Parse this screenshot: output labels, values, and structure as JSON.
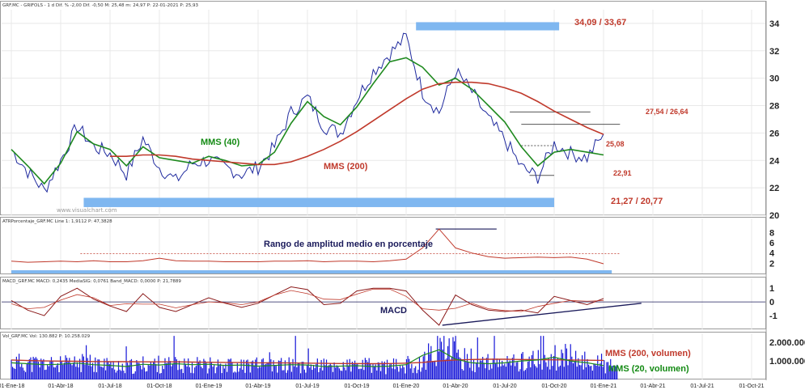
{
  "colors": {
    "price": "#1f2a9e",
    "sma40": "#1f8a1f",
    "sma200": "#c0392b",
    "band": "#7fb7f0",
    "atr": "#c0392b",
    "macd": "#8b1a1a",
    "signal": "#c0392b",
    "volume": "#1515d8",
    "grid": "#e8e8e8",
    "dotted": "#c0392b",
    "trendline": "#1a1a5a"
  },
  "panels": {
    "price": {
      "header": "GRF.MC - GRIFOLS - 1 d Dif. % -2,00 Dif. -0,50 M: 25,48 m: 24,97 P: 22-01-2021 P: 25,93",
      "watermark": "www.visualchart.com",
      "y_ticks": [
        "34",
        "32",
        "30",
        "28",
        "26",
        "24",
        "22",
        "20"
      ]
    },
    "atr": {
      "header": "ATRPorcentaje_GRF.MC Line 1: 1,9112 P: 47,3828",
      "y_ticks": [
        "8",
        "6",
        "4",
        "2"
      ]
    },
    "macd": {
      "header": "MACD_GRF.MC MACD: 0,2435 MediaSIG: 0,0761 Band_MACD: 0,0000 P: 21,7889",
      "y_ticks": [
        "1",
        "0",
        "-1"
      ]
    },
    "volume": {
      "header": "Vol_GRF.MC Vol: 130.882 P: 10.258.029",
      "y_ticks": [
        "2.000.000",
        "1.000.000"
      ]
    }
  },
  "annotations": {
    "resistance_band": "34,09 / 33,67",
    "support_band": "21,27 / 20,77",
    "level_2754": "27,54 / 26,64",
    "level_2508": "25,08",
    "level_2291": "22,91",
    "sma40_label": "MMS (40)",
    "sma200_label": "MMS (200)",
    "atr_label": "Rango de amplitud medio en porcentaje",
    "macd_label": "MACD",
    "vol_sma200_label": "MMS (200, volumen)",
    "vol_sma20_label": "MMS (20, volumen)"
  },
  "chart_data": {
    "type": "line",
    "x_ticks": [
      "01-Ene-18",
      "01-Abr-18",
      "01-Jul-18",
      "01-Oct-18",
      "01-Ene-19",
      "01-Abr-19",
      "01-Jul-19",
      "01-Oct-19",
      "01-Ene-20",
      "01-Abr-20",
      "01-Jul-20",
      "01-Oct-20",
      "01-Ene-21",
      "01-Abr-21",
      "01-Jul-21",
      "01-Oct-21"
    ],
    "x": [
      "2018-01",
      "2018-02",
      "2018-03",
      "2018-04",
      "2018-05",
      "2018-06",
      "2018-07",
      "2018-08",
      "2018-09",
      "2018-10",
      "2018-11",
      "2018-12",
      "2019-01",
      "2019-02",
      "2019-03",
      "2019-04",
      "2019-05",
      "2019-06",
      "2019-07",
      "2019-08",
      "2019-09",
      "2019-10",
      "2019-11",
      "2019-12",
      "2020-01",
      "2020-02",
      "2020-03",
      "2020-04",
      "2020-05",
      "2020-06",
      "2020-07",
      "2020-08",
      "2020-09",
      "2020-10",
      "2020-11",
      "2020-12",
      "2021-01"
    ],
    "price_ylim": [
      20,
      35
    ],
    "series": [
      {
        "name": "MMS (40)",
        "values": [
          24.8,
          23.6,
          22.3,
          23.8,
          26.1,
          25.2,
          24.8,
          23.6,
          25.0,
          24.2,
          24.0,
          23.8,
          24.3,
          24.0,
          23.6,
          23.7,
          24.6,
          26.7,
          28.3,
          27.2,
          26.6,
          27.9,
          29.6,
          31.2,
          31.5,
          30.8,
          29.5,
          30.0,
          29.2,
          28.0,
          26.8,
          25.0,
          23.6,
          24.6,
          24.8,
          24.6,
          24.4
        ]
      },
      {
        "name": "MMS (200)",
        "values": [
          null,
          null,
          null,
          null,
          null,
          null,
          24.3,
          24.3,
          24.4,
          24.4,
          24.3,
          24.1,
          24.0,
          23.9,
          23.8,
          23.7,
          23.7,
          23.9,
          24.3,
          24.8,
          25.4,
          26.1,
          26.9,
          27.7,
          28.5,
          29.2,
          29.6,
          29.7,
          29.7,
          29.6,
          29.3,
          28.9,
          28.3,
          27.6,
          27.0,
          26.4,
          25.9
        ]
      }
    ],
    "price_close": [
      24.8,
      23.2,
      21.8,
      24.0,
      26.5,
      25.0,
      24.5,
      23.0,
      25.6,
      23.5,
      22.5,
      23.8,
      24.0,
      23.5,
      23.0,
      23.5,
      25.0,
      27.5,
      28.6,
      26.5,
      26.0,
      28.5,
      30.5,
      31.8,
      33.0,
      29.0,
      27.5,
      30.5,
      29.0,
      27.0,
      25.5,
      23.5,
      22.8,
      25.2,
      24.5,
      24.2,
      25.93
    ],
    "atr_values": [
      2.4,
      2.2,
      2.3,
      2.4,
      2.3,
      2.5,
      2.3,
      2.3,
      2.5,
      3.0,
      2.5,
      2.4,
      2.4,
      2.3,
      2.3,
      2.3,
      2.4,
      2.4,
      2.5,
      2.3,
      2.4,
      2.4,
      2.3,
      2.5,
      2.8,
      5.0,
      8.7,
      5.0,
      4.0,
      3.3,
      3.0,
      3.1,
      3.2,
      3.1,
      3.2,
      2.8,
      1.9
    ],
    "atr_ylim": [
      0,
      9.5
    ],
    "macd_values": [
      0.1,
      -0.6,
      -1.0,
      0.4,
      1.0,
      0.2,
      -0.3,
      -0.7,
      0.6,
      -0.4,
      -0.7,
      -0.2,
      0.3,
      -0.1,
      -0.4,
      -0.1,
      0.5,
      1.1,
      0.9,
      -0.2,
      -0.1,
      0.8,
      1.0,
      1.0,
      0.8,
      -0.6,
      -1.7,
      0.5,
      -0.2,
      -0.6,
      -0.7,
      -0.6,
      -0.8,
      0.4,
      0.1,
      -0.2,
      0.24
    ],
    "macd_ylim": [
      -2,
      1.6
    ],
    "volume_ylim": [
      0,
      2400000
    ],
    "volume_sma200": [
      1050000,
      1020000,
      1000000,
      990000,
      980000,
      970000,
      960000,
      960000,
      950000,
      950000,
      950000,
      940000,
      930000,
      920000,
      910000,
      900000,
      900000,
      890000,
      880000,
      870000,
      860000,
      860000,
      850000,
      860000,
      880000,
      920000,
      1000000,
      1050000,
      1080000,
      1090000,
      1090000,
      1080000,
      1070000,
      1060000,
      1050000,
      1040000,
      1030000
    ],
    "volume_sma20": [
      900000,
      850000,
      800000,
      820000,
      880000,
      800000,
      760000,
      700000,
      820000,
      780000,
      850000,
      800000,
      820000,
      760000,
      780000,
      720000,
      760000,
      800000,
      780000,
      700000,
      720000,
      740000,
      700000,
      720000,
      800000,
      1300000,
      1600000,
      1100000,
      900000,
      850000,
      900000,
      1000000,
      1050000,
      1200000,
      1000000,
      900000,
      750000
    ]
  }
}
